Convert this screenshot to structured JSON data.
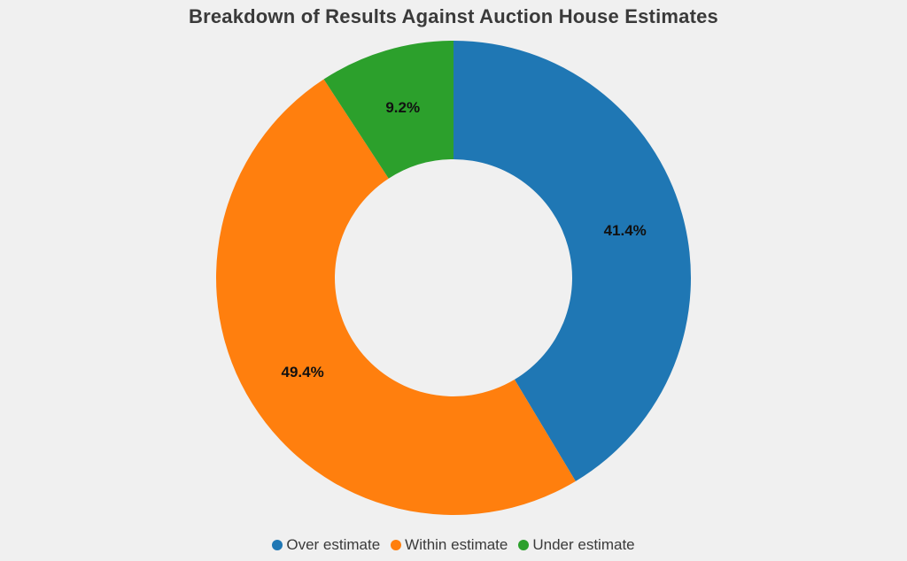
{
  "chart_data": {
    "type": "pie",
    "title": "Breakdown of Results Against Auction House Estimates",
    "donut": true,
    "categories": [
      "Over estimate",
      "Within estimate",
      "Under estimate"
    ],
    "values": [
      41.4,
      49.4,
      9.2
    ],
    "data_labels": [
      "41.4%",
      "49.4%",
      "9.2%"
    ],
    "colors": [
      "#1f77b4",
      "#ff7f0e",
      "#2ca02c"
    ],
    "start_angle": "12 o'clock",
    "direction": "clockwise",
    "legend_position": "bottom"
  }
}
